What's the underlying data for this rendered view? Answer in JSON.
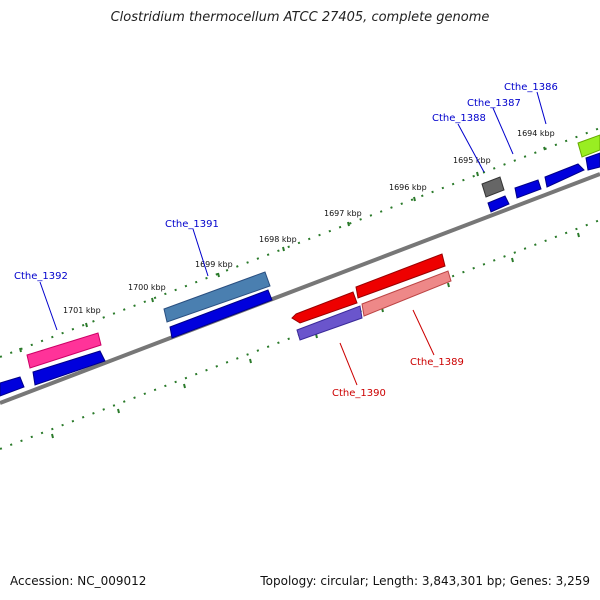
{
  "title": "Clostridium thermocellum ATCC 27405, complete genome",
  "footer": {
    "accession": "Accession: NC_009012",
    "summary": "Topology: circular; Length: 3,843,301 bp; Genes: 3,259"
  },
  "colors": {
    "backbone": "#777777",
    "tick": "#2a7a2a",
    "forward_label": "#0000cc",
    "reverse_label": "#cc0000"
  },
  "ticks": [
    "1694 kbp",
    "1695 kbp",
    "1696 kbp",
    "1697 kbp",
    "1698 kbp",
    "1699 kbp",
    "1700 kbp",
    "1701 kbp"
  ],
  "gene_labels": [
    {
      "name": "Cthe_1386",
      "color": "#0000cc"
    },
    {
      "name": "Cthe_1387",
      "color": "#0000cc"
    },
    {
      "name": "Cthe_1388",
      "color": "#0000cc"
    },
    {
      "name": "Cthe_1391",
      "color": "#0000cc"
    },
    {
      "name": "Cthe_1392",
      "color": "#0000cc"
    },
    {
      "name": "Cthe_1389",
      "color": "#cc0000"
    },
    {
      "name": "Cthe_1390",
      "color": "#cc0000"
    }
  ]
}
